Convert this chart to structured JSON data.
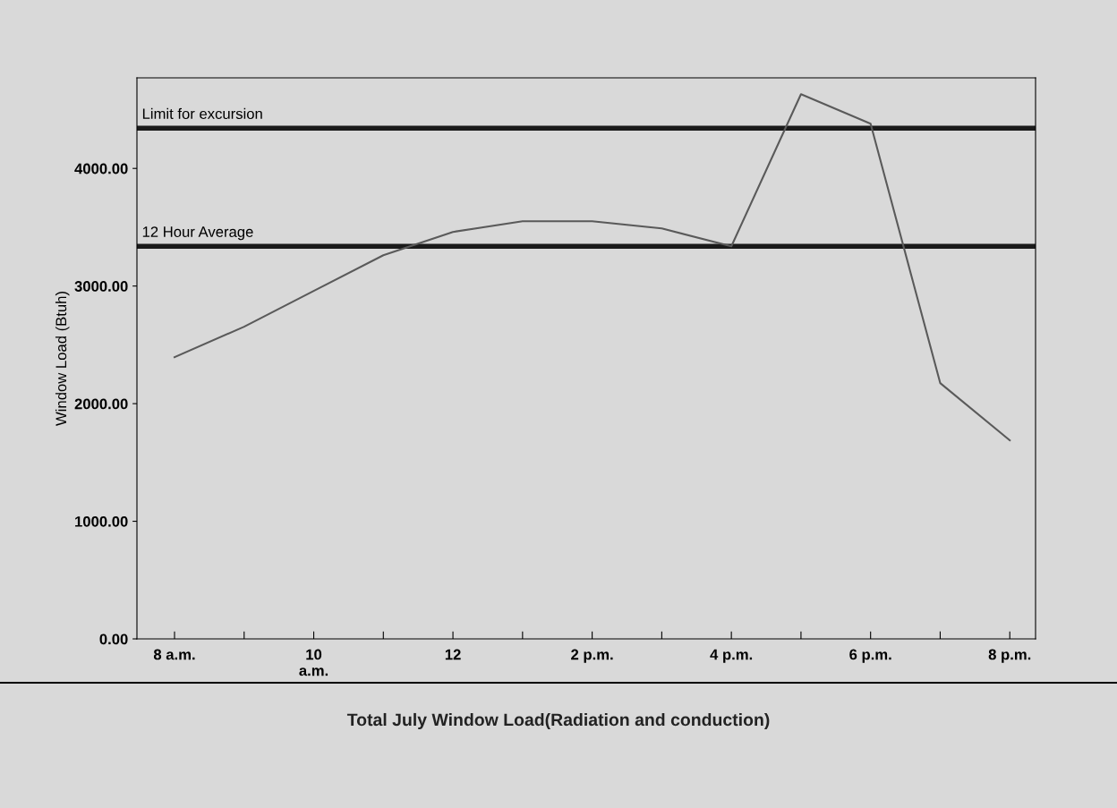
{
  "chart_data": {
    "type": "line",
    "title": "Total July Window Load(Radiation and conduction)",
    "ylabel": "Window Load (Btuh)",
    "categories": [
      "8 a.m.",
      null,
      "10\na.m.",
      null,
      "12",
      null,
      "2 p.m.",
      null,
      "4 p.m.",
      null,
      "6 p.m.",
      null,
      "8 p.m."
    ],
    "series": [
      {
        "color": "#5a5a5a",
        "values": [
          2395,
          2654,
          2958,
          3262,
          3460,
          3551,
          3551,
          3490,
          3338,
          4631,
          4380,
          2175,
          1688
        ]
      }
    ],
    "ylim": [
      0,
      4770
    ],
    "yticks": [
      {
        "value": 0,
        "label": "0.00"
      },
      {
        "value": 1000,
        "label": "1000.00"
      },
      {
        "value": 2000,
        "label": "2000.00"
      },
      {
        "value": 3000,
        "label": "3000.00"
      },
      {
        "value": 4000,
        "label": "4000.00"
      }
    ],
    "ref_lines": [
      {
        "axis": "y",
        "value": 4342,
        "label": "Limit for excursion",
        "color": "#1a1a1a"
      },
      {
        "axis": "y",
        "value": 3338,
        "label": "12 Hour Average",
        "color": "#1a1a1a"
      }
    ],
    "grid": false,
    "marker": "none",
    "line_style": "solid"
  }
}
